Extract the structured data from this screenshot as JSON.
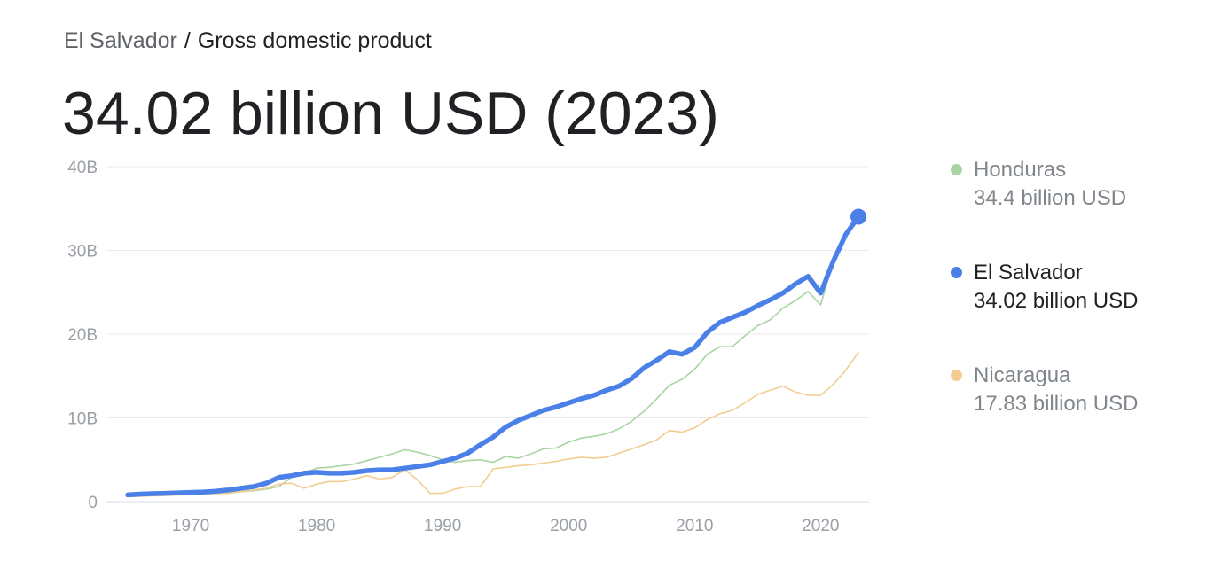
{
  "header": {
    "country": "El Salvador",
    "separator": "/",
    "metric": "Gross domestic product",
    "headline": "34.02 billion USD (2023)"
  },
  "legend": [
    {
      "name": "Honduras",
      "value": "34.4 billion USD",
      "color": "#a8d5a2",
      "active": false
    },
    {
      "name": "El Salvador",
      "value": "34.02 billion USD",
      "color": "#4a80e8",
      "active": true
    },
    {
      "name": "Nicaragua",
      "value": "17.83 billion USD",
      "color": "#f2cc91",
      "active": false
    }
  ],
  "chart_data": {
    "type": "line",
    "xlim": [
      1965,
      2023
    ],
    "ylim": [
      0,
      40
    ],
    "y_ticks": [
      0,
      10,
      20,
      30,
      40
    ],
    "y_tick_labels": [
      "0",
      "10B",
      "20B",
      "30B",
      "40B"
    ],
    "x_ticks": [
      1970,
      1980,
      1990,
      2000,
      2010,
      2020
    ],
    "x_tick_labels": [
      "1970",
      "1980",
      "1990",
      "2000",
      "2010",
      "2020"
    ],
    "grid": true,
    "x": [
      1965,
      1966,
      1967,
      1968,
      1969,
      1970,
      1971,
      1972,
      1973,
      1974,
      1975,
      1976,
      1977,
      1978,
      1979,
      1980,
      1981,
      1982,
      1983,
      1984,
      1985,
      1986,
      1987,
      1988,
      1989,
      1990,
      1991,
      1992,
      1993,
      1994,
      1995,
      1996,
      1997,
      1998,
      1999,
      2000,
      2001,
      2002,
      2003,
      2004,
      2005,
      2006,
      2007,
      2008,
      2009,
      2010,
      2011,
      2012,
      2013,
      2014,
      2015,
      2016,
      2017,
      2018,
      2019,
      2020,
      2021,
      2022,
      2023
    ],
    "series": [
      {
        "name": "Honduras",
        "color": "#a8d5a2",
        "width": 1.6,
        "highlight": false,
        "values": [
          0.7,
          0.75,
          0.8,
          0.85,
          0.9,
          0.95,
          1.0,
          1.05,
          1.1,
          1.2,
          1.3,
          1.5,
          1.8,
          2.9,
          3.4,
          4.0,
          4.1,
          4.3,
          4.5,
          4.9,
          5.3,
          5.7,
          6.2,
          5.9,
          5.5,
          5.0,
          4.7,
          4.9,
          5.0,
          4.7,
          5.4,
          5.2,
          5.7,
          6.3,
          6.4,
          7.1,
          7.6,
          7.8,
          8.1,
          8.7,
          9.6,
          10.8,
          12.3,
          13.9,
          14.6,
          15.8,
          17.6,
          18.5,
          18.5,
          19.8,
          21.0,
          21.7,
          23.1,
          24.0,
          25.1,
          23.5,
          28.6,
          31.7,
          34.4
        ]
      },
      {
        "name": "Nicaragua",
        "color": "#f2cc91",
        "width": 1.6,
        "highlight": false,
        "values": [
          0.6,
          0.65,
          0.7,
          0.75,
          0.8,
          0.85,
          0.9,
          0.95,
          1.0,
          1.2,
          1.4,
          1.6,
          2.1,
          2.2,
          1.6,
          2.1,
          2.4,
          2.4,
          2.7,
          3.1,
          2.7,
          2.9,
          3.8,
          2.6,
          1.0,
          1.0,
          1.5,
          1.8,
          1.8,
          3.9,
          4.1,
          4.3,
          4.4,
          4.6,
          4.8,
          5.1,
          5.3,
          5.2,
          5.3,
          5.8,
          6.3,
          6.8,
          7.4,
          8.5,
          8.3,
          8.8,
          9.8,
          10.5,
          10.9,
          11.8,
          12.8,
          13.3,
          13.8,
          13.1,
          12.7,
          12.7,
          14.0,
          15.7,
          17.83
        ]
      },
      {
        "name": "El Salvador",
        "color": "#4a80e8",
        "width": 5.5,
        "highlight": true,
        "values": [
          0.8,
          0.9,
          0.95,
          1.0,
          1.05,
          1.1,
          1.15,
          1.25,
          1.4,
          1.6,
          1.8,
          2.2,
          2.9,
          3.1,
          3.4,
          3.5,
          3.4,
          3.4,
          3.5,
          3.7,
          3.8,
          3.8,
          4.0,
          4.2,
          4.4,
          4.8,
          5.2,
          5.8,
          6.8,
          7.7,
          8.9,
          9.7,
          10.3,
          10.9,
          11.3,
          11.8,
          12.3,
          12.7,
          13.3,
          13.8,
          14.7,
          16.0,
          16.9,
          17.9,
          17.6,
          18.4,
          20.2,
          21.4,
          22.0,
          22.6,
          23.4,
          24.1,
          24.9,
          26.0,
          26.9,
          24.9,
          28.7,
          31.9,
          34.02
        ]
      }
    ]
  }
}
